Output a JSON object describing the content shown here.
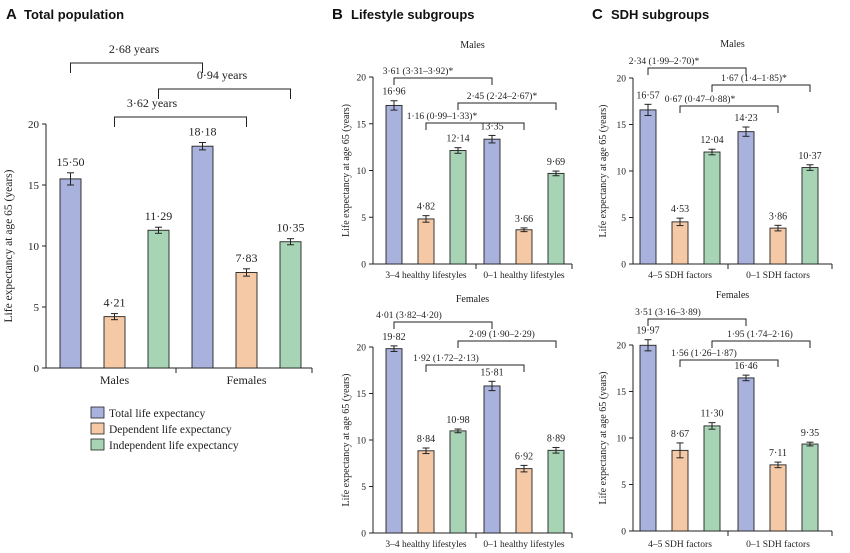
{
  "colors": {
    "total": "#a9b1dd",
    "dependent": "#f6c9a6",
    "independent": "#a8d4b6",
    "stroke": "#222222"
  },
  "legend": {
    "items": [
      {
        "label": "Total life expectancy",
        "color": "#a9b1dd"
      },
      {
        "label": "Dependent life expectancy",
        "color": "#f6c9a6"
      },
      {
        "label": "Independent life expectancy",
        "color": "#a8d4b6"
      }
    ]
  },
  "chart_data": [
    {
      "id": "A",
      "type": "bar",
      "letter": "A",
      "title": "Total population",
      "subtitle": "",
      "ylabel": "Life expectancy at age 65 (years)",
      "ylim": [
        0,
        20
      ],
      "yticks": [
        0,
        5,
        10,
        15,
        20
      ],
      "categories": [
        "Males",
        "Females"
      ],
      "series": [
        {
          "name": "Total life expectancy",
          "values": [
            15.5,
            18.18
          ],
          "labels": [
            "15·50",
            "18·18"
          ],
          "err": [
            0.5,
            0.3
          ]
        },
        {
          "name": "Dependent life expectancy",
          "values": [
            4.21,
            7.83
          ],
          "labels": [
            "4·21",
            "7·83"
          ],
          "err": [
            0.25,
            0.3
          ]
        },
        {
          "name": "Independent life expectancy",
          "values": [
            11.29,
            10.35
          ],
          "labels": [
            "11·29",
            "10·35"
          ],
          "err": [
            0.25,
            0.25
          ]
        }
      ],
      "annotations": [
        {
          "text": "2·68 years",
          "from": [
            0,
            0
          ],
          "to": [
            1,
            0
          ]
        },
        {
          "text": "0·94 years",
          "from": [
            0,
            2
          ],
          "to": [
            1,
            2
          ]
        },
        {
          "text": "3·62 years",
          "from": [
            0,
            1
          ],
          "to": [
            1,
            1
          ]
        }
      ]
    },
    {
      "id": "B1",
      "type": "bar",
      "letter": "B",
      "title": "Lifestyle subgroups",
      "subtitle": "Males",
      "ylabel": "Life expectancy at age 65 (years)",
      "ylim": [
        0,
        20
      ],
      "yticks": [
        0,
        5,
        10,
        15,
        20
      ],
      "categories": [
        "3–4 healthy lifestyles",
        "0–1 healthy lifestyles"
      ],
      "series": [
        {
          "name": "Total life expectancy",
          "values": [
            16.96,
            13.35
          ],
          "labels": [
            "16·96",
            "13·35"
          ],
          "err": [
            0.5,
            0.4
          ]
        },
        {
          "name": "Dependent life expectancy",
          "values": [
            4.82,
            3.66
          ],
          "labels": [
            "4·82",
            "3·66"
          ],
          "err": [
            0.35,
            0.2
          ]
        },
        {
          "name": "Independent life expectancy",
          "values": [
            12.14,
            9.69
          ],
          "labels": [
            "12·14",
            "9·69"
          ],
          "err": [
            0.3,
            0.25
          ]
        }
      ],
      "annotations": [
        {
          "text": "3·61 (3·31–3·92)*",
          "from": [
            0,
            0
          ],
          "to": [
            1,
            0
          ]
        },
        {
          "text": "2·45 (2·24–2·67)*",
          "from": [
            0,
            2
          ],
          "to": [
            1,
            2
          ]
        },
        {
          "text": "1·16 (0·99–1·33)*",
          "from": [
            0,
            1
          ],
          "to": [
            1,
            1
          ]
        }
      ]
    },
    {
      "id": "B2",
      "type": "bar",
      "letter": "",
      "title": "",
      "subtitle": "Females",
      "ylabel": "Life expectancy at age 65 (years)",
      "ylim": [
        0,
        20
      ],
      "yticks": [
        0,
        5,
        10,
        15,
        20
      ],
      "categories": [
        "3–4 healthy lifestyles",
        "0–1 healthy lifestyles"
      ],
      "series": [
        {
          "name": "Total life expectancy",
          "values": [
            19.82,
            15.81
          ],
          "labels": [
            "19·82",
            "15·81"
          ],
          "err": [
            0.3,
            0.5
          ]
        },
        {
          "name": "Dependent life expectancy",
          "values": [
            8.84,
            6.92
          ],
          "labels": [
            "8·84",
            "6·92"
          ],
          "err": [
            0.3,
            0.35
          ]
        },
        {
          "name": "Independent life expectancy",
          "values": [
            10.98,
            8.89
          ],
          "labels": [
            "10·98",
            "8·89"
          ],
          "err": [
            0.2,
            0.3
          ]
        }
      ],
      "annotations": [
        {
          "text": "4·01 (3·82–4·20)",
          "from": [
            0,
            0
          ],
          "to": [
            1,
            0
          ]
        },
        {
          "text": "2·09 (1·90–2·29)",
          "from": [
            0,
            2
          ],
          "to": [
            1,
            2
          ]
        },
        {
          "text": "1·92 (1·72–2·13)",
          "from": [
            0,
            1
          ],
          "to": [
            1,
            1
          ]
        }
      ]
    },
    {
      "id": "C1",
      "type": "bar",
      "letter": "C",
      "title": "SDH subgroups",
      "subtitle": "Males",
      "ylabel": "Life expectancy at age 65 (years)",
      "ylim": [
        0,
        20
      ],
      "yticks": [
        0,
        5,
        10,
        15,
        20
      ],
      "categories": [
        "4–5 SDH factors",
        "0–1 SDH factors"
      ],
      "series": [
        {
          "name": "Total life expectancy",
          "values": [
            16.57,
            14.23
          ],
          "labels": [
            "16·57",
            "14·23"
          ],
          "err": [
            0.6,
            0.5
          ]
        },
        {
          "name": "Dependent life expectancy",
          "values": [
            4.53,
            3.86
          ],
          "labels": [
            "4·53",
            "3·86"
          ],
          "err": [
            0.4,
            0.3
          ]
        },
        {
          "name": "Independent life expectancy",
          "values": [
            12.04,
            10.37
          ],
          "labels": [
            "12·04",
            "10·37"
          ],
          "err": [
            0.3,
            0.3
          ]
        }
      ],
      "annotations": [
        {
          "text": "2·34 (1·99–2·70)*",
          "from": [
            0,
            0
          ],
          "to": [
            1,
            0
          ]
        },
        {
          "text": "1·67 (1·4–1·85)*",
          "from": [
            0,
            2
          ],
          "to": [
            1,
            2
          ]
        },
        {
          "text": "0·67 (0·47–0·88)*",
          "from": [
            0,
            1
          ],
          "to": [
            1,
            1
          ]
        }
      ]
    },
    {
      "id": "C2",
      "type": "bar",
      "letter": "",
      "title": "",
      "subtitle": "Females",
      "ylabel": "Life expectancy at age 65 (years)",
      "ylim": [
        0,
        20
      ],
      "yticks": [
        0,
        5,
        10,
        15,
        20
      ],
      "categories": [
        "4–5 SDH factors",
        "0–1 SDH factors"
      ],
      "series": [
        {
          "name": "Total life expectancy",
          "values": [
            19.97,
            16.46
          ],
          "labels": [
            "19·97",
            "16·46"
          ],
          "err": [
            0.6,
            0.3
          ]
        },
        {
          "name": "Dependent life expectancy",
          "values": [
            8.67,
            7.11
          ],
          "labels": [
            "8·67",
            "7·11"
          ],
          "err": [
            0.8,
            0.3
          ]
        },
        {
          "name": "Independent life expectancy",
          "values": [
            11.3,
            9.35
          ],
          "labels": [
            "11·30",
            "9·35"
          ],
          "err": [
            0.35,
            0.2
          ]
        }
      ],
      "annotations": [
        {
          "text": "3·51 (3·16–3·89)",
          "from": [
            0,
            0
          ],
          "to": [
            1,
            0
          ]
        },
        {
          "text": "1·95 (1·74–2·16)",
          "from": [
            0,
            2
          ],
          "to": [
            1,
            2
          ]
        },
        {
          "text": "1·56 (1·26–1·87)",
          "from": [
            0,
            1
          ],
          "to": [
            1,
            1
          ]
        }
      ]
    }
  ]
}
